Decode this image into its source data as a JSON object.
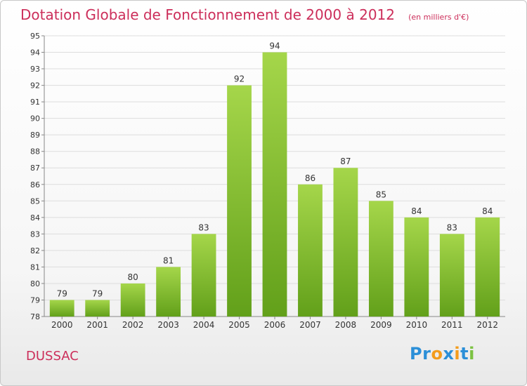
{
  "title": "Dotation Globale de Fonctionnement de 2000 à 2012",
  "unit": "(en milliers d'€)",
  "commune": "DUSSAC",
  "logo": {
    "text": "Proxiti",
    "colors": [
      "#2b8fd8",
      "#f39c1c",
      "#7cc242"
    ]
  },
  "colors": {
    "title": "#cc2e5a",
    "bar_light": "#a5d64a",
    "bar_dark": "#62a01a",
    "grid": "#dddddd"
  },
  "chart_data": {
    "type": "bar",
    "title": "Dotation Globale de Fonctionnement de 2000 à 2012",
    "xlabel": "",
    "ylabel": "",
    "ylim": [
      78,
      95
    ],
    "yticks": [
      78,
      79,
      80,
      81,
      82,
      83,
      84,
      85,
      86,
      87,
      88,
      89,
      90,
      91,
      92,
      93,
      94,
      95
    ],
    "grid": true,
    "categories": [
      "2000",
      "2001",
      "2002",
      "2003",
      "2004",
      "2005",
      "2006",
      "2007",
      "2008",
      "2009",
      "2010",
      "2011",
      "2012"
    ],
    "values": [
      79,
      79,
      80,
      81,
      83,
      92,
      94,
      86,
      87,
      85,
      84,
      83,
      84
    ]
  }
}
